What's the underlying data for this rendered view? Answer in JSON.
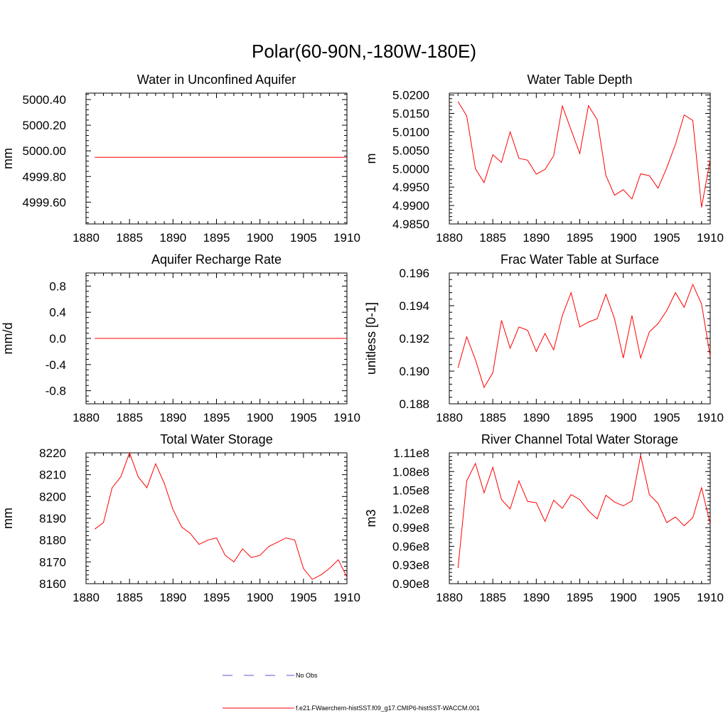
{
  "title": "Polar(60-90N,-180W-180E)",
  "colors": {
    "model": "#ff0000",
    "obs": "#5a5ad2",
    "axes": "#000000"
  },
  "legend": {
    "obs_label": "No Obs",
    "model_label": "f.e21.FWaerchem-histSST.f09_g17.CMIP6-histSST-WACCM.001"
  },
  "chart_data": [
    {
      "type": "line",
      "title": "Water in Unconfined Aquifer",
      "ylabel": "mm",
      "xlim": [
        1880,
        1910
      ],
      "ylim": [
        4999.43,
        5000.45
      ],
      "xticks": [
        1880,
        1885,
        1890,
        1895,
        1900,
        1905,
        1910
      ],
      "yticks": [
        "4999.60",
        "4999.80",
        "5000.00",
        "5000.20",
        "5000.40"
      ],
      "x": [
        1881,
        1882,
        1883,
        1884,
        1885,
        1886,
        1887,
        1888,
        1889,
        1890,
        1891,
        1892,
        1893,
        1894,
        1895,
        1896,
        1897,
        1898,
        1899,
        1900,
        1901,
        1902,
        1903,
        1904,
        1905,
        1906,
        1907,
        1908,
        1909,
        1910
      ],
      "series": [
        {
          "values": [
            4999.95,
            4999.95,
            4999.95,
            4999.95,
            4999.95,
            4999.95,
            4999.95,
            4999.95,
            4999.95,
            4999.95,
            4999.95,
            4999.95,
            4999.95,
            4999.95,
            4999.95,
            4999.95,
            4999.95,
            4999.95,
            4999.95,
            4999.95,
            4999.95,
            4999.95,
            4999.95,
            4999.95,
            4999.95,
            4999.95,
            4999.95,
            4999.95,
            4999.95,
            4999.95
          ]
        }
      ]
    },
    {
      "type": "line",
      "title": "Water Table Depth",
      "ylabel": "m",
      "xlim": [
        1880,
        1910
      ],
      "ylim": [
        4.985,
        5.0205
      ],
      "xticks": [
        1880,
        1885,
        1890,
        1895,
        1900,
        1905,
        1910
      ],
      "yticks": [
        "4.9850",
        "4.9900",
        "4.9950",
        "5.0000",
        "5.0050",
        "5.0100",
        "5.0150",
        "5.0200"
      ],
      "x": [
        1881,
        1882,
        1883,
        1884,
        1885,
        1886,
        1887,
        1888,
        1889,
        1890,
        1891,
        1892,
        1893,
        1894,
        1895,
        1896,
        1897,
        1898,
        1899,
        1900,
        1901,
        1902,
        1903,
        1904,
        1905,
        1906,
        1907,
        1908,
        1909,
        1910
      ],
      "series": [
        {
          "values": [
            5.0182,
            5.0143,
            5.0,
            4.9962,
            5.0038,
            5.0017,
            5.01,
            5.0028,
            5.0023,
            4.9985,
            4.9998,
            5.0035,
            5.017,
            5.0105,
            5.0041,
            5.0171,
            5.0133,
            4.9982,
            4.9928,
            4.9943,
            4.9918,
            4.9986,
            4.9981,
            4.9947,
            5.0002,
            5.0066,
            5.0146,
            5.0131,
            4.9895,
            5.0025
          ]
        }
      ]
    },
    {
      "type": "line",
      "title": "Aquifer Recharge Rate",
      "ylabel": "mm/d",
      "xlim": [
        1880,
        1910
      ],
      "ylim": [
        -1.0,
        1.0
      ],
      "xticks": [
        1880,
        1885,
        1890,
        1895,
        1900,
        1905,
        1910
      ],
      "yticks": [
        "-0.8",
        "-0.4",
        "0.0",
        "0.4",
        "0.8"
      ],
      "x": [
        1881,
        1882,
        1883,
        1884,
        1885,
        1886,
        1887,
        1888,
        1889,
        1890,
        1891,
        1892,
        1893,
        1894,
        1895,
        1896,
        1897,
        1898,
        1899,
        1900,
        1901,
        1902,
        1903,
        1904,
        1905,
        1906,
        1907,
        1908,
        1909,
        1910
      ],
      "series": [
        {
          "values": [
            0,
            0,
            0,
            0,
            0,
            0,
            0,
            0,
            0,
            0,
            0,
            0,
            0,
            0,
            0,
            0,
            0,
            0,
            0,
            0,
            0,
            0,
            0,
            0,
            0,
            0,
            0,
            0,
            0,
            0
          ]
        }
      ]
    },
    {
      "type": "line",
      "title": "Frac Water Table at Surface",
      "ylabel": "unitless [0-1]",
      "xlim": [
        1880,
        1910
      ],
      "ylim": [
        0.188,
        0.196
      ],
      "xticks": [
        1880,
        1885,
        1890,
        1895,
        1900,
        1905,
        1910
      ],
      "yticks": [
        "0.188",
        "0.190",
        "0.192",
        "0.194",
        "0.196"
      ],
      "x": [
        1881,
        1882,
        1883,
        1884,
        1885,
        1886,
        1887,
        1888,
        1889,
        1890,
        1891,
        1892,
        1893,
        1894,
        1895,
        1896,
        1897,
        1898,
        1899,
        1900,
        1901,
        1902,
        1903,
        1904,
        1905,
        1906,
        1907,
        1908,
        1909,
        1910
      ],
      "series": [
        {
          "values": [
            0.1902,
            0.1921,
            0.1907,
            0.189,
            0.1899,
            0.1931,
            0.1914,
            0.1927,
            0.1925,
            0.1912,
            0.1923,
            0.1913,
            0.1934,
            0.1948,
            0.1927,
            0.193,
            0.1932,
            0.1947,
            0.1932,
            0.1908,
            0.1934,
            0.1908,
            0.1924,
            0.1929,
            0.1937,
            0.1948,
            0.1939,
            0.1953,
            0.1941,
            0.1909
          ]
        }
      ]
    },
    {
      "type": "line",
      "title": "Total Water Storage",
      "ylabel": "mm",
      "xlim": [
        1880,
        1910
      ],
      "ylim": [
        8160,
        8220
      ],
      "xticks": [
        1880,
        1885,
        1890,
        1895,
        1900,
        1905,
        1910
      ],
      "yticks": [
        "8160",
        "8170",
        "8180",
        "8190",
        "8200",
        "8210",
        "8220"
      ],
      "x": [
        1881,
        1882,
        1883,
        1884,
        1885,
        1886,
        1887,
        1888,
        1889,
        1890,
        1891,
        1892,
        1893,
        1894,
        1895,
        1896,
        1897,
        1898,
        1899,
        1900,
        1901,
        1902,
        1903,
        1904,
        1905,
        1906,
        1907,
        1908,
        1909,
        1910
      ],
      "series": [
        {
          "values": [
            8185,
            8188,
            8204,
            8209,
            8220,
            8209,
            8204,
            8215,
            8206,
            8194,
            8186,
            8183,
            8178,
            8180,
            8181,
            8173,
            8170,
            8176,
            8172,
            8173,
            8177,
            8179,
            8181,
            8180,
            8167,
            8162,
            8164,
            8167,
            8171,
            8163
          ]
        }
      ]
    },
    {
      "type": "line",
      "title": "River Channel Total Water Storage",
      "ylabel": "m3",
      "xlim": [
        1880,
        1910
      ],
      "ylim": [
        90000000,
        111000000
      ],
      "xticks": [
        1880,
        1885,
        1890,
        1895,
        1900,
        1905,
        1910
      ],
      "yticks": [
        "0.90e8",
        "0.93e8",
        "0.96e8",
        "0.99e8",
        "1.02e8",
        "1.05e8",
        "1.08e8",
        "1.11e8"
      ],
      "x": [
        1881,
        1882,
        1883,
        1884,
        1885,
        1886,
        1887,
        1888,
        1889,
        1890,
        1891,
        1892,
        1893,
        1894,
        1895,
        1896,
        1897,
        1898,
        1899,
        1900,
        1901,
        1902,
        1903,
        1904,
        1905,
        1906,
        1907,
        1908,
        1909,
        1910
      ],
      "series": [
        {
          "values": [
            92500000,
            106500000,
            109300000,
            104600000,
            108700000,
            103500000,
            102000000,
            106500000,
            103200000,
            103000000,
            100000000,
            103400000,
            102100000,
            104300000,
            103500000,
            101700000,
            100400000,
            104200000,
            103100000,
            102500000,
            103300000,
            110600000,
            104300000,
            102900000,
            99800000,
            100700000,
            99300000,
            100600000,
            105400000,
            99600000
          ]
        }
      ]
    }
  ]
}
